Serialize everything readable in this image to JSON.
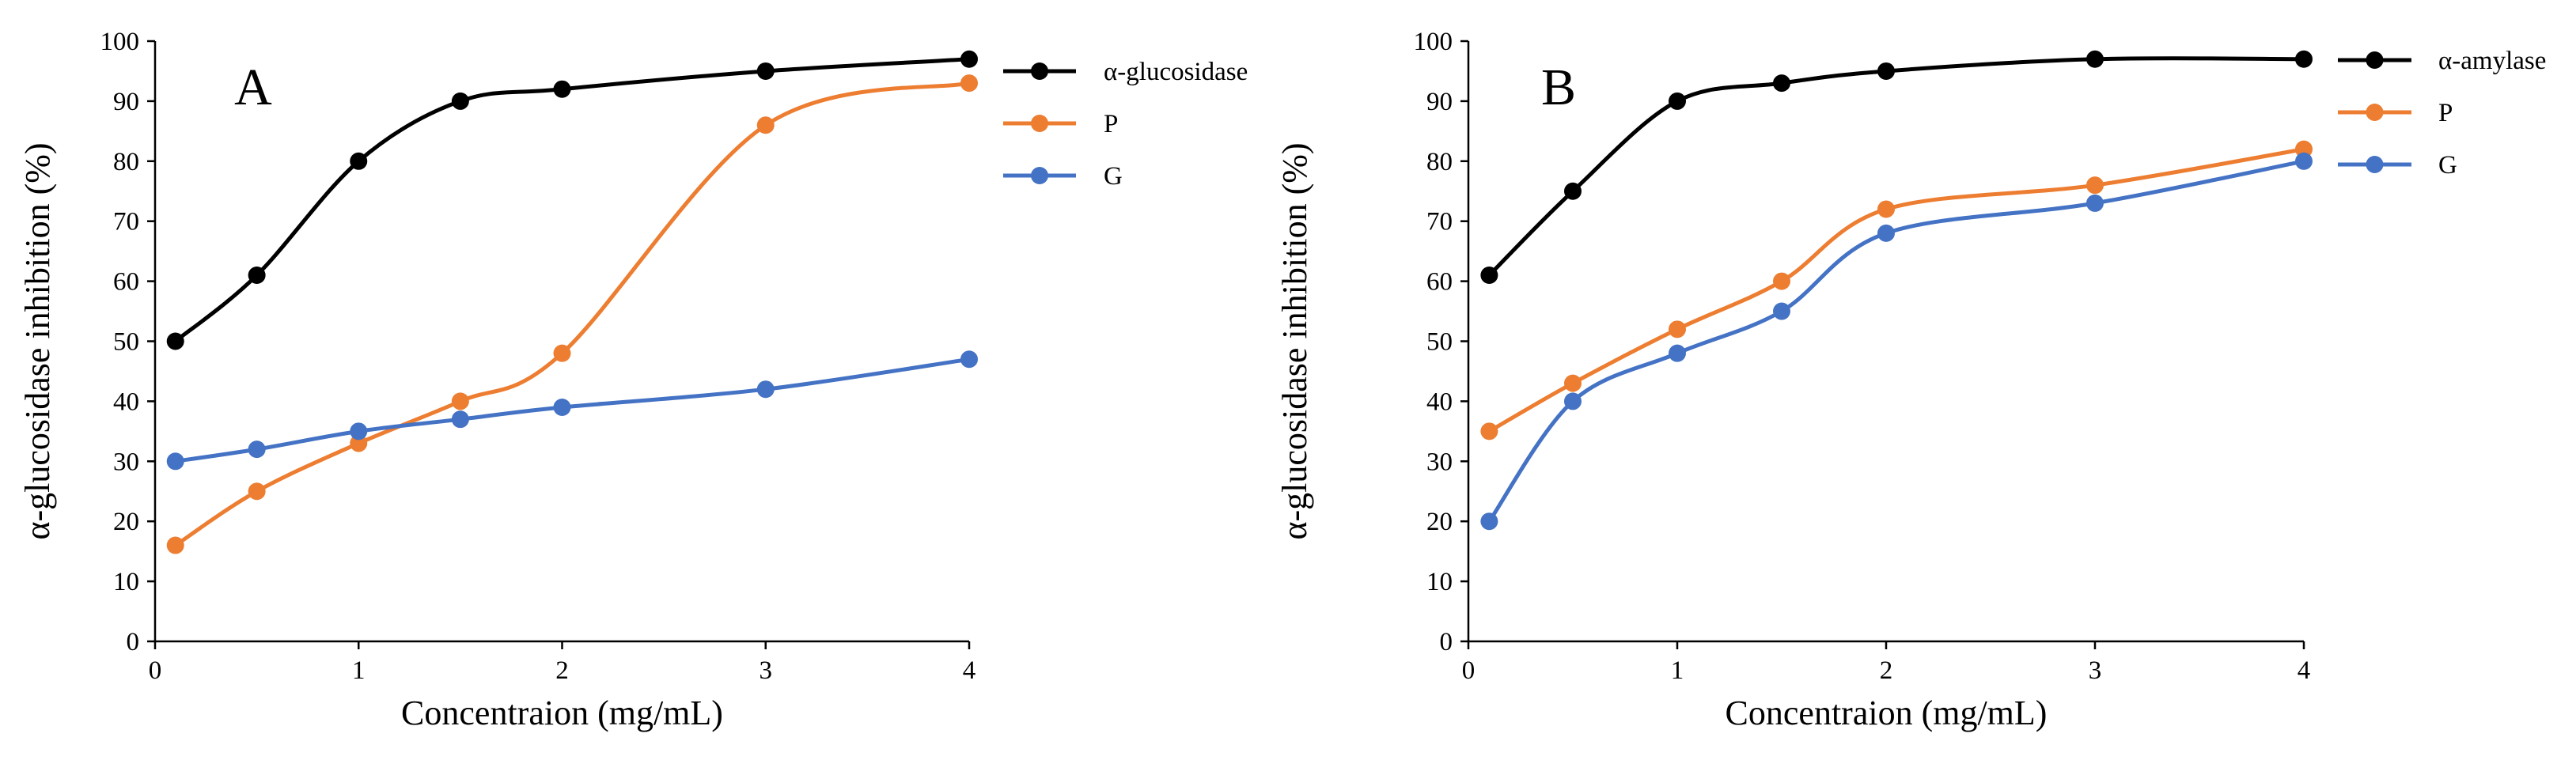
{
  "colors": {
    "black": "#000000",
    "orange": "#ED7D31",
    "blue": "#4472C4"
  },
  "chart_data": [
    {
      "type": "line",
      "panel_label": "A",
      "xlabel": "Concentraion (mg/mL)",
      "ylabel": "α-glucosidase inhibition (%)",
      "xlim": [
        0,
        4
      ],
      "ylim": [
        0,
        100
      ],
      "x_ticks": [
        "0",
        "1",
        "2",
        "3",
        "4"
      ],
      "y_ticks": [
        "0",
        "10",
        "20",
        "30",
        "40",
        "50",
        "60",
        "70",
        "80",
        "90",
        "100"
      ],
      "grid": false,
      "legend_position": "top-right",
      "x": [
        0.1,
        0.5,
        1,
        1.5,
        2,
        3,
        4
      ],
      "series": [
        {
          "name": "α-glucosidase",
          "color": "#000000",
          "values": [
            50,
            61,
            80,
            90,
            92,
            95,
            97
          ]
        },
        {
          "name": "P",
          "color": "#ED7D31",
          "values": [
            16,
            25,
            33,
            40,
            48,
            86,
            93
          ]
        },
        {
          "name": "G",
          "color": "#4472C4",
          "values": [
            30,
            32,
            35,
            37,
            39,
            42,
            47
          ]
        }
      ]
    },
    {
      "type": "line",
      "panel_label": "B",
      "xlabel": "Concentraion (mg/mL)",
      "ylabel": "α-glucosidase inhibition (%)",
      "xlim": [
        0,
        4
      ],
      "ylim": [
        0,
        100
      ],
      "x_ticks": [
        "0",
        "1",
        "2",
        "3",
        "4"
      ],
      "y_ticks": [
        "0",
        "10",
        "20",
        "30",
        "40",
        "50",
        "60",
        "70",
        "80",
        "90",
        "100"
      ],
      "grid": false,
      "legend_position": "top-right",
      "x": [
        0.1,
        0.5,
        1,
        1.5,
        2,
        3,
        4
      ],
      "series": [
        {
          "name": "α-amylase",
          "color": "#000000",
          "values": [
            61,
            75,
            90,
            93,
            95,
            97,
            97
          ]
        },
        {
          "name": "P",
          "color": "#ED7D31",
          "values": [
            35,
            43,
            52,
            60,
            72,
            76,
            82
          ]
        },
        {
          "name": "G",
          "color": "#4472C4",
          "values": [
            20,
            40,
            48,
            55,
            68,
            73,
            80
          ]
        }
      ]
    }
  ]
}
